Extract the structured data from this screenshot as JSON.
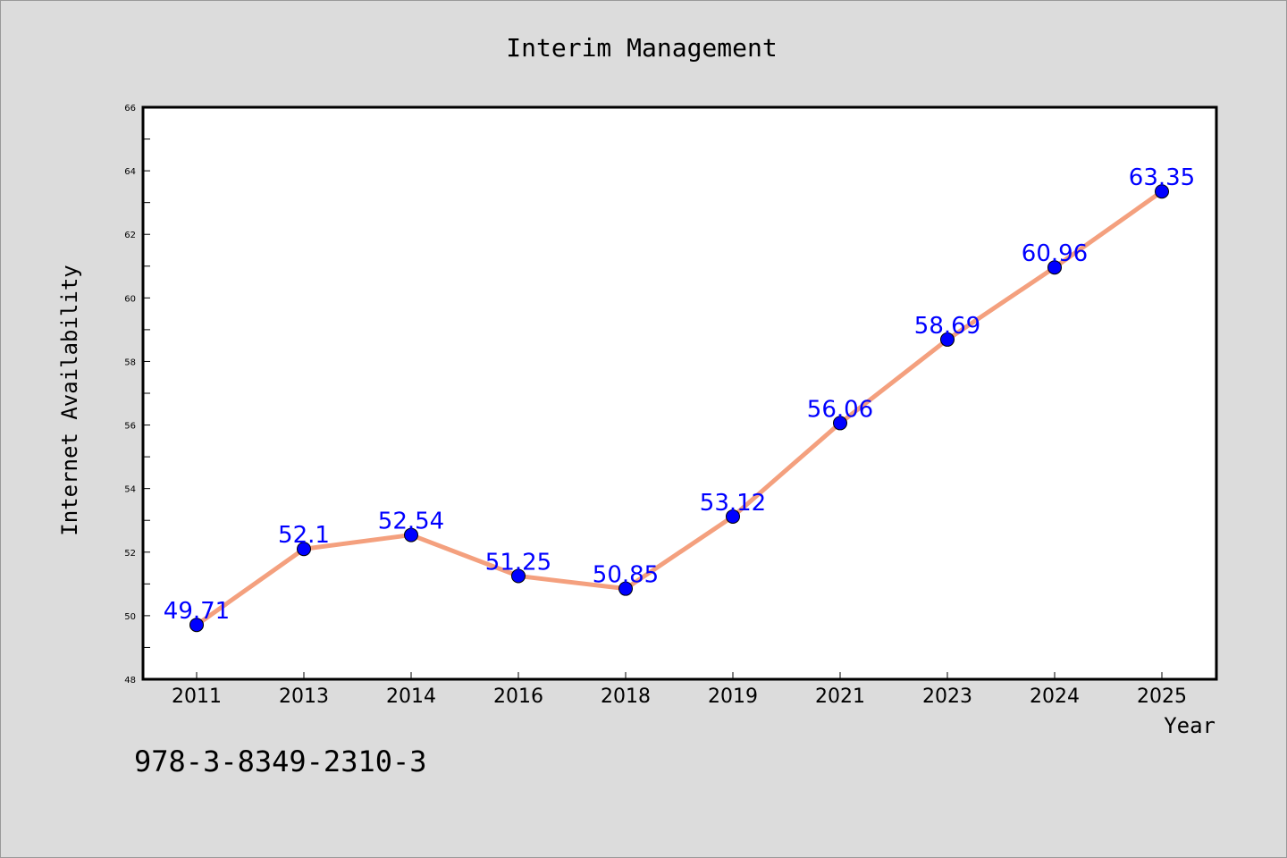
{
  "chart_data": {
    "type": "line",
    "title": "Interim Management",
    "xlabel": "Year",
    "ylabel": "Internet Availability",
    "categories": [
      "2011",
      "2013",
      "2014",
      "2016",
      "2018",
      "2019",
      "2021",
      "2023",
      "2024",
      "2025"
    ],
    "series": [
      {
        "values": [
          49.71,
          52.1,
          52.54,
          51.25,
          50.85,
          53.12,
          56.06,
          58.69,
          60.96,
          63.35
        ],
        "labels": [
          "49.71",
          "52.1",
          "52.54",
          "51.25",
          "50.85",
          "53.12",
          "56.06",
          "58.69",
          "60.96",
          "63.35"
        ]
      }
    ],
    "ylim": [
      48,
      66
    ],
    "yticks": [
      "48",
      "50",
      "52",
      "54",
      "56",
      "58",
      "60",
      "62",
      "64",
      "66"
    ],
    "grid": false,
    "colors": {
      "line": "#f4a07e",
      "marker": "#0000ff",
      "label": "#0000ff",
      "background": "#dcdcdc",
      "plot_background": "#ffffff"
    }
  },
  "footer": {
    "identifier": "978-3-8349-2310-3"
  }
}
